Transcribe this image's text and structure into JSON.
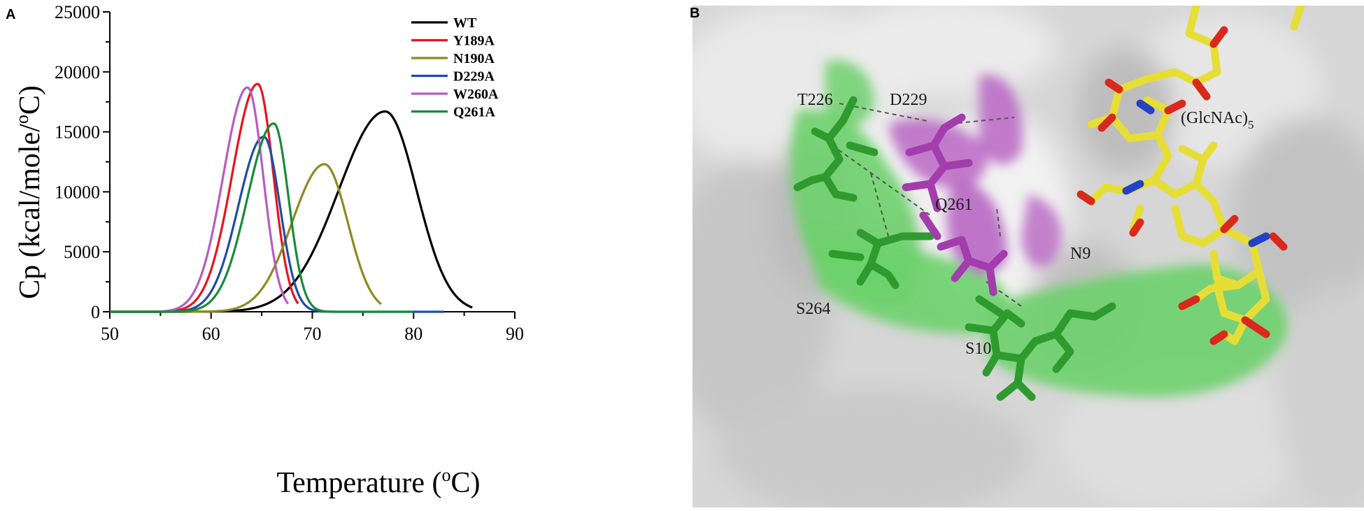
{
  "panel_labels": {
    "a": "A",
    "b": "B"
  },
  "chart_data": {
    "type": "line",
    "xlabel_main": "Temperature (",
    "xlabel_sup": "o",
    "xlabel_end": "C)",
    "ylabel_main": "Cp (kcal/mole/",
    "ylabel_sup": "o",
    "ylabel_end": "C)",
    "xlim": [
      50,
      90
    ],
    "ylim": [
      0,
      25000
    ],
    "xticks": [
      50,
      60,
      70,
      80,
      90
    ],
    "yticks": [
      0,
      5000,
      10000,
      15000,
      20000,
      25000
    ],
    "grid": false,
    "legend_position": "top-right",
    "series": [
      {
        "name": "WT",
        "color": "#000000",
        "peak_x": 77.2,
        "peak_y": 16700,
        "sigma_left": 4.6,
        "sigma_right": 3.1,
        "end_x": 85.8
      },
      {
        "name": "Y189A",
        "color": "#e8141c",
        "peak_x": 64.6,
        "peak_y": 19000,
        "sigma_left": 2.5,
        "sigma_right": 1.55,
        "end_x": 68.6
      },
      {
        "name": "N190A",
        "color": "#8c8a22",
        "peak_x": 71.2,
        "peak_y": 12300,
        "sigma_left": 3.2,
        "sigma_right": 2.3,
        "end_x": 76.8
      },
      {
        "name": "D229A",
        "color": "#1e4fa3",
        "peak_x": 65.2,
        "peak_y": 14600,
        "sigma_left": 2.5,
        "sigma_right": 1.6,
        "end_x": 83.0
      },
      {
        "name": "W260A",
        "color": "#b85cbf",
        "peak_x": 63.6,
        "peak_y": 18700,
        "sigma_left": 2.4,
        "sigma_right": 1.55,
        "end_x": 67.6
      },
      {
        "name": "Q261A",
        "color": "#1a8a3c",
        "peak_x": 66.2,
        "peak_y": 15700,
        "sigma_left": 2.6,
        "sigma_right": 1.45,
        "end_x": 80.0
      }
    ]
  },
  "structure": {
    "labels": {
      "t226": "T226",
      "d229": "D229",
      "glc": "(GlcNAc)",
      "glc_sub": "5",
      "q261": "Q261",
      "n9": "N9",
      "s264": "S264",
      "s10": "S10"
    },
    "colors": {
      "surface": "#dcdcdc",
      "surface_shadow": "#b8b8b8",
      "green_patch": "#6ccf6a",
      "magenta_patch": "#b865c2",
      "carbon_yellow": "#e8e03a",
      "oxygen_red": "#d8281c",
      "nitrogen_blue": "#2040c8",
      "green_sticks": "#2e9a2e",
      "magenta_sticks": "#9c3aa6"
    }
  }
}
